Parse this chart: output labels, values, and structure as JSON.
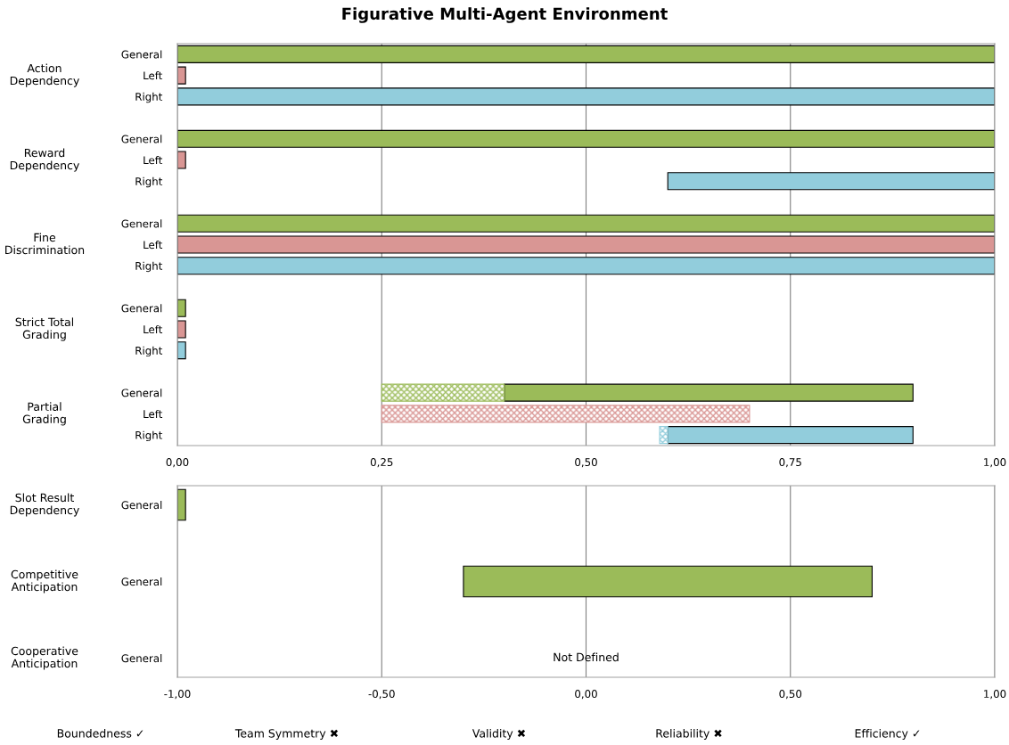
{
  "chart_data": [
    {
      "type": "bar",
      "orientation": "horizontal",
      "title": "Figurative Multi-Agent Environment",
      "categories": [
        "General",
        "Left",
        "Right",
        null,
        "General",
        "Left",
        "Right",
        null,
        "General",
        "Left",
        "Right",
        null,
        "General",
        "Left",
        "Right",
        null,
        "General",
        "Left",
        "Right"
      ],
      "series": [
        {
          "values": [
            1.0,
            0.01,
            1.0,
            null,
            1.0,
            0.01,
            0.4,
            null,
            1.0,
            1.0,
            1.0,
            null,
            0.01,
            0.01,
            0.01,
            null,
            0.5,
            null,
            0.3
          ],
          "base": [
            0,
            0,
            0,
            null,
            0,
            0,
            0.6,
            null,
            0,
            0,
            0,
            null,
            0,
            0,
            0,
            null,
            0.4,
            null,
            0.6
          ],
          "colors": [
            "#9bbb59",
            "#d99694",
            "#92cddc",
            null,
            "#9bbb59",
            "#d99694",
            "#92cddc",
            null,
            "#9bbb59",
            "#d99694",
            "#92cddc",
            null,
            "#9bbb59",
            "#d99694",
            "#92cddc",
            null,
            "#9bbb59",
            null,
            "#92cddc"
          ]
        },
        {
          "values": [
            null,
            null,
            null,
            null,
            null,
            null,
            null,
            null,
            null,
            null,
            null,
            null,
            null,
            null,
            null,
            null,
            0.15,
            0.45,
            0.01
          ],
          "base": [
            null,
            null,
            null,
            null,
            null,
            null,
            null,
            null,
            null,
            null,
            null,
            null,
            null,
            null,
            null,
            null,
            0.25,
            0.25,
            0.59
          ],
          "colors": [
            null,
            null,
            null,
            null,
            null,
            null,
            null,
            null,
            null,
            null,
            null,
            null,
            null,
            null,
            null,
            null,
            "#9bbb59",
            "#d99694",
            "#92cddc"
          ]
        }
      ],
      "xlim": [
        0,
        1
      ],
      "xticks": [
        {
          "value": 0,
          "label": "0,00"
        },
        {
          "value": 0.25,
          "label": "0,25"
        },
        {
          "value": 0.5,
          "label": "0,50"
        },
        {
          "value": 0.75,
          "label": "0,75"
        },
        {
          "value": 1,
          "label": "1,00"
        }
      ],
      "grid": "x",
      "annotations": [
        "Action Dependency",
        "Reward Dependency",
        "Fine Discrimination",
        "Strict Total Grading",
        "Partial Grading"
      ]
    },
    {
      "type": "bar",
      "orientation": "horizontal",
      "categories": [
        "General",
        null,
        "General",
        null,
        "General"
      ],
      "values": [
        0.02,
        null,
        1.0,
        null,
        null
      ],
      "base": [
        -1,
        null,
        -0.3,
        null,
        null
      ],
      "colors": [
        "#9bbb59",
        null,
        "#9bbb59",
        null,
        null
      ],
      "xlim": [
        -1,
        1
      ],
      "xticks": [
        {
          "value": -1,
          "label": "-1,00"
        },
        {
          "value": -0.5,
          "label": "-0,50"
        },
        {
          "value": 0,
          "label": "0,00"
        },
        {
          "value": 0.5,
          "label": "0,50"
        },
        {
          "value": 1,
          "label": "1,00"
        }
      ],
      "grid": "x",
      "annotations": [
        "Slot Result Dependency",
        "Competitive Anticipation",
        "Cooperative Anticipation",
        "Not Defined",
        "Boundedness ✓",
        "Team Symmetry ✖",
        "Validity ✖",
        "Reliability ✖",
        "Efficiency ✓"
      ]
    }
  ]
}
